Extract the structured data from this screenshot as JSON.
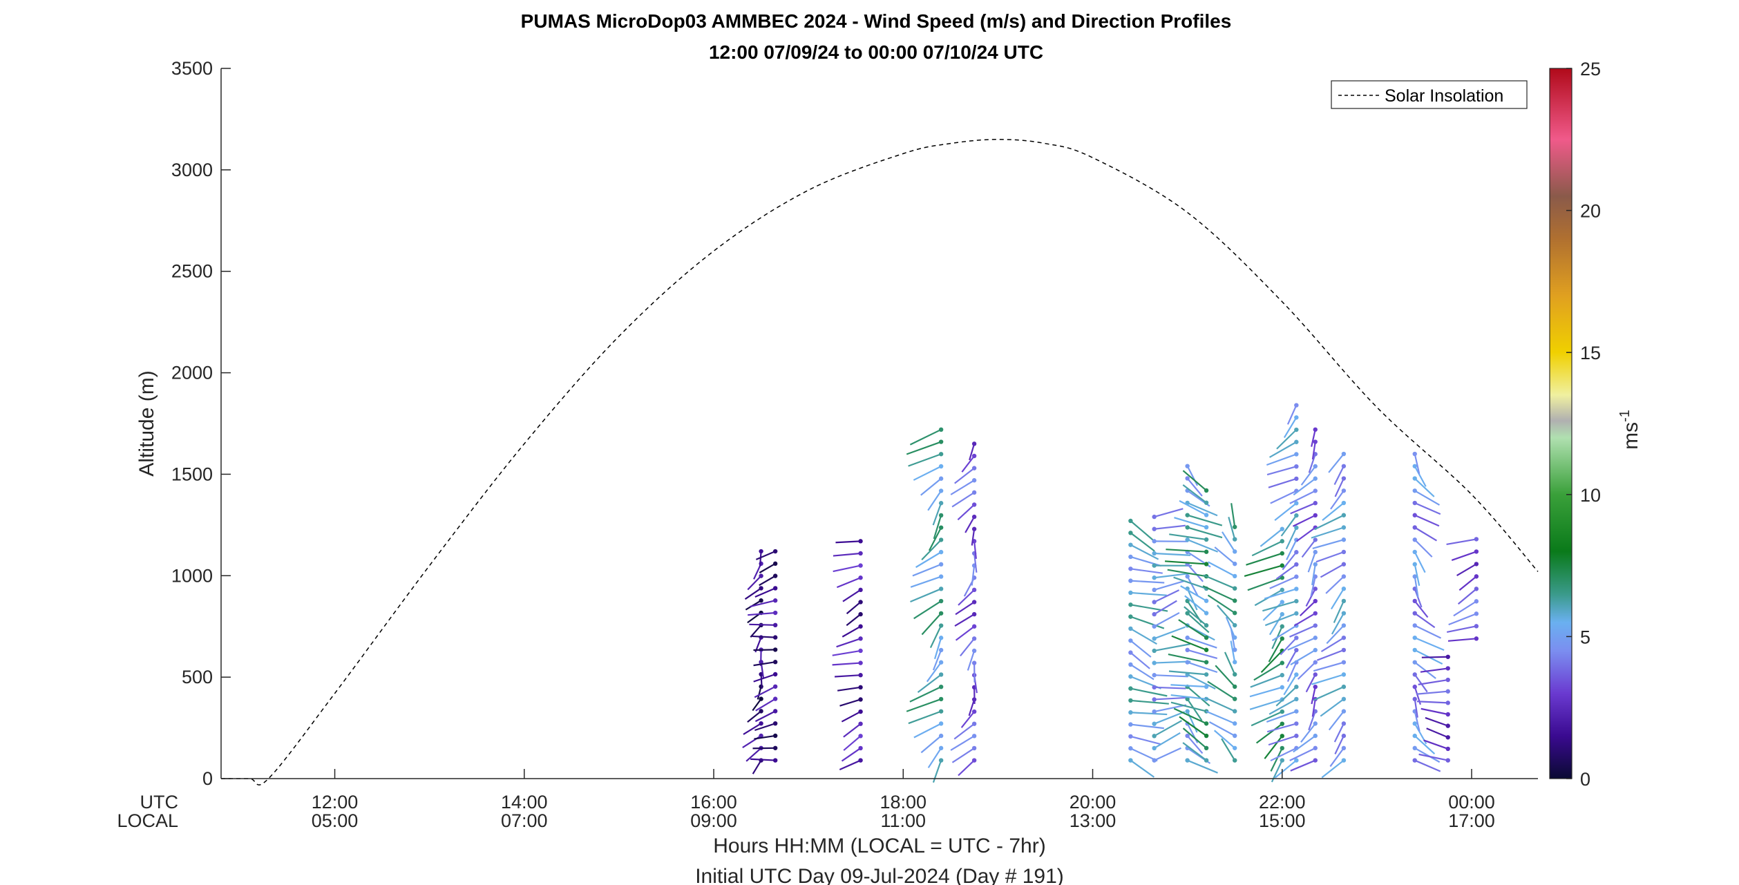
{
  "chart_data": {
    "type": "wind-profile",
    "title": "PUMAS MicroDop03 AMMBEC 2024 - Wind Speed (m/s) and Direction Profiles",
    "subtitle": "12:00 07/09/24 to 00:00 07/10/24  UTC",
    "ylabel": "Altitude (m)",
    "ylim": [
      0,
      3500
    ],
    "yticks": [
      0,
      500,
      1000,
      1500,
      2000,
      2500,
      3000,
      3500
    ],
    "xlim": [
      10.8,
      24.7
    ],
    "xticks": [
      {
        "x": 12,
        "utc": "12:00",
        "local": "05:00"
      },
      {
        "x": 14,
        "utc": "14:00",
        "local": "07:00"
      },
      {
        "x": 16,
        "utc": "16:00",
        "local": "09:00"
      },
      {
        "x": 18,
        "utc": "18:00",
        "local": "11:00"
      },
      {
        "x": 20,
        "utc": "20:00",
        "local": "13:00"
      },
      {
        "x": 22,
        "utc": "22:00",
        "local": "15:00"
      },
      {
        "x": 24,
        "utc": "00:00",
        "local": "17:00"
      }
    ],
    "row_label_utc": "UTC",
    "row_label_local": "LOCAL",
    "xlabel": "Hours HH:MM  (LOCAL = UTC - 7hr)",
    "xlabel2": "Initial UTC Day 09-Jul-2024 (Day # 191)",
    "colorbar": {
      "label": "ms",
      "label_sup": "-1",
      "range": [
        0,
        25
      ],
      "ticks": [
        0,
        5,
        10,
        15,
        20,
        25
      ],
      "stops": [
        {
          "v": 0,
          "color": "#0a0a33"
        },
        {
          "v": 1.5,
          "color": "#3a0a90"
        },
        {
          "v": 3,
          "color": "#6a3ad0"
        },
        {
          "v": 4.5,
          "color": "#7b8ef0"
        },
        {
          "v": 5.5,
          "color": "#6ab0f0"
        },
        {
          "v": 6.5,
          "color": "#3a9a8a"
        },
        {
          "v": 8,
          "color": "#0a7a1a"
        },
        {
          "v": 10,
          "color": "#3aa03a"
        },
        {
          "v": 12,
          "color": "#b0e0b0"
        },
        {
          "v": 12.6,
          "color": "#b0b0b0"
        },
        {
          "v": 13.5,
          "color": "#f0f0a0"
        },
        {
          "v": 15,
          "color": "#f0d000"
        },
        {
          "v": 17,
          "color": "#e0a020"
        },
        {
          "v": 19,
          "color": "#b07030"
        },
        {
          "v": 20.5,
          "color": "#8a5a4a"
        },
        {
          "v": 22.5,
          "color": "#f05a8a"
        },
        {
          "v": 25,
          "color": "#b00a1a"
        }
      ]
    },
    "legend": {
      "entries": [
        "Solar Insolation"
      ],
      "placement": "top-right"
    },
    "solar_insolation": {
      "x": [
        10.8,
        11.1,
        11.3,
        12,
        13,
        14,
        15,
        16,
        17,
        18,
        18.5,
        19,
        19.5,
        20,
        21,
        22,
        23,
        24,
        24.7
      ],
      "y": [
        0,
        0,
        0,
        420,
        1050,
        1650,
        2180,
        2600,
        2900,
        3080,
        3130,
        3150,
        3130,
        3060,
        2790,
        2350,
        1830,
        1400,
        1020
      ]
    },
    "profiles": [
      {
        "time": 16.5,
        "alt0": 90,
        "alt1": 1120,
        "dir": 200,
        "speed": 1.2
      },
      {
        "time": 16.65,
        "alt0": 90,
        "alt1": 1120,
        "dir": 250,
        "speed": 1.5
      },
      {
        "time": 17.55,
        "alt0": 90,
        "alt1": 1170,
        "dir": 240,
        "speed": 2.0
      },
      {
        "time": 18.4,
        "alt0": 90,
        "alt1": 1720,
        "dir": 215,
        "speed": 6.0
      },
      {
        "time": 18.75,
        "alt0": 90,
        "alt1": 1650,
        "dir": 200,
        "speed": 3.5
      },
      {
        "time": 20.4,
        "alt0": 90,
        "alt1": 1270,
        "dir": 120,
        "speed": 5.5
      },
      {
        "time": 20.65,
        "alt0": 90,
        "alt1": 1290,
        "dir": 70,
        "speed": 5.0
      },
      {
        "time": 21.0,
        "alt0": 90,
        "alt1": 1540,
        "dir": 140,
        "speed": 5.5
      },
      {
        "time": 21.2,
        "alt0": 90,
        "alt1": 1420,
        "dir": 300,
        "speed": 6.5
      },
      {
        "time": 21.5,
        "alt0": 90,
        "alt1": 1240,
        "dir": 330,
        "speed": 6.0
      },
      {
        "time": 22.0,
        "alt0": 90,
        "alt1": 1230,
        "dir": 220,
        "speed": 6.5
      },
      {
        "time": 22.15,
        "alt0": 90,
        "alt1": 1840,
        "dir": 220,
        "speed": 5.0
      },
      {
        "time": 22.35,
        "alt0": 90,
        "alt1": 1720,
        "dir": 210,
        "speed": 4.0
      },
      {
        "time": 22.65,
        "alt0": 90,
        "alt1": 1600,
        "dir": 220,
        "speed": 5.0
      },
      {
        "time": 23.4,
        "alt0": 90,
        "alt1": 1600,
        "dir": 150,
        "speed": 4.5
      },
      {
        "time": 23.75,
        "alt0": 90,
        "alt1": 600,
        "dir": 280,
        "speed": 3.0
      },
      {
        "time": 24.05,
        "alt0": 690,
        "alt1": 1180,
        "dir": 240,
        "speed": 3.5
      }
    ]
  }
}
